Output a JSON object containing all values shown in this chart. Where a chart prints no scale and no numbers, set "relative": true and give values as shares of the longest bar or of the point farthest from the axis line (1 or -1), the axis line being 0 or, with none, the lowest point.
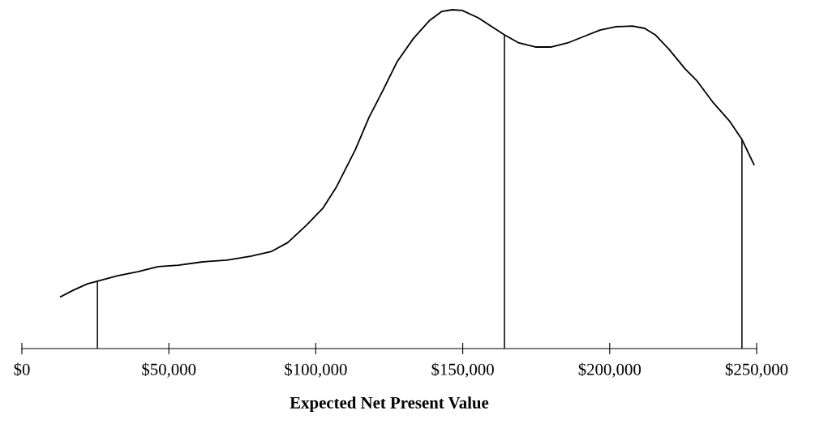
{
  "chart_data": {
    "type": "line",
    "relative": true,
    "xlabel": "Expected Net Present Value",
    "color": "#000000",
    "tick_labels": "x",
    "grid": false,
    "legend": false,
    "marker": "none",
    "line_style": "solid",
    "xlim": [
      0,
      250000
    ],
    "xticks": [
      {
        "value": 0,
        "label": "$0"
      },
      {
        "value": 50000,
        "label": "$50,000"
      },
      {
        "value": 100000,
        "label": "$100,000"
      },
      {
        "value": 150000,
        "label": "$150,000"
      },
      {
        "value": 200000,
        "label": "$200,000"
      },
      {
        "value": 250000,
        "label": "$250,000"
      }
    ],
    "x": [
      13200,
      17400,
      22300,
      25700,
      32600,
      39500,
      46400,
      53300,
      61500,
      69800,
      78100,
      85000,
      90500,
      96800,
      102400,
      107100,
      113400,
      118100,
      122800,
      127700,
      133300,
      138800,
      142900,
      146500,
      149800,
      155300,
      159500,
      164200,
      169100,
      174700,
      180200,
      185700,
      191200,
      196700,
      202200,
      207800,
      211900,
      215500,
      220200,
      225700,
      229800,
      235300,
      240900,
      245000,
      249100
    ],
    "values": [
      0.153,
      0.172,
      0.191,
      0.199,
      0.215,
      0.227,
      0.242,
      0.246,
      0.256,
      0.261,
      0.273,
      0.287,
      0.313,
      0.364,
      0.414,
      0.478,
      0.586,
      0.682,
      0.761,
      0.847,
      0.916,
      0.969,
      0.995,
      1,
      0.998,
      0.976,
      0.952,
      0.926,
      0.902,
      0.89,
      0.89,
      0.902,
      0.921,
      0.94,
      0.95,
      0.952,
      0.945,
      0.926,
      0.883,
      0.825,
      0.789,
      0.725,
      0.67,
      0.617,
      0.543
    ],
    "ref_lines": [
      {
        "axis": "x",
        "value": 25700,
        "color": "#000000"
      },
      {
        "axis": "x",
        "value": 164200,
        "color": "#000000"
      },
      {
        "axis": "x",
        "value": 245000,
        "color": "#000000"
      }
    ]
  }
}
